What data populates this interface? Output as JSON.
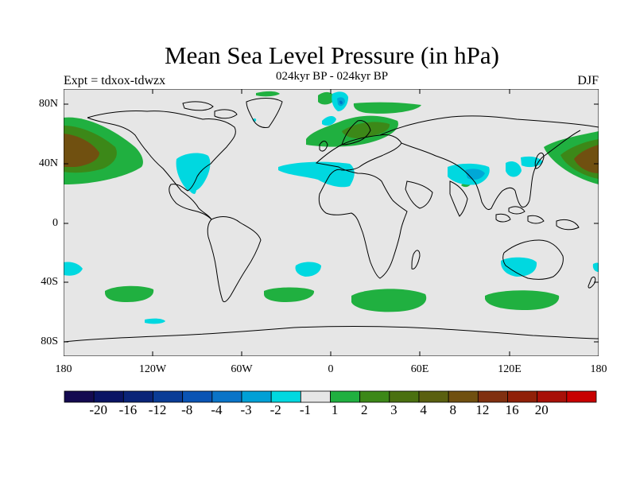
{
  "header": {
    "title": "Mean Sea Level Pressure (in hPa)",
    "subtitle": "024kyr BP - 024kyr BP",
    "left_label": "Expt = tdxox-tdwzx",
    "right_label": "DJF"
  },
  "map": {
    "lat_ticks": [
      "80N",
      "40N",
      "0",
      "40S",
      "80S"
    ],
    "lon_ticks": [
      "180",
      "120W",
      "60W",
      "0",
      "60E",
      "120E",
      "180"
    ],
    "colors": {
      "background": "#e6e6e6",
      "coast": "#000000",
      "neg1": "#00d8e0",
      "neg2": "#00a8d6",
      "neg3": "#0078c8",
      "pos1": "#20b040",
      "pos2": "#3c8818",
      "pos3": "#5a6010",
      "pos4": "#705010",
      "pos5": "#803010"
    }
  },
  "colorbar": {
    "labels": [
      "-20",
      "-16",
      "-12",
      "-8",
      "-4",
      "-3",
      "-2",
      "-1",
      "1",
      "2",
      "3",
      "4",
      "8",
      "12",
      "16",
      "20"
    ],
    "colors": [
      "#140a50",
      "#0a1464",
      "#0a2478",
      "#0a3c96",
      "#0a54b4",
      "#0a74c8",
      "#00a0d6",
      "#00d8e0",
      "#e6e6e6",
      "#20b040",
      "#3c8818",
      "#4a7010",
      "#5a6010",
      "#705010",
      "#803010",
      "#902008",
      "#a81008",
      "#c80000"
    ]
  }
}
